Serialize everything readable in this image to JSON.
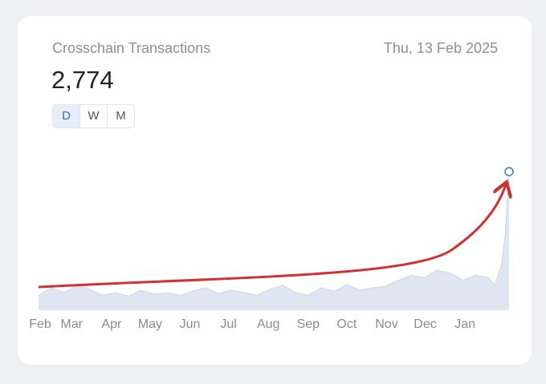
{
  "header": {
    "title": "Crosschain Transactions",
    "date": "Thu, 13 Feb 2025",
    "value": "2,774",
    "buttons": [
      "D",
      "W",
      "M"
    ]
  },
  "chart_data": {
    "type": "area",
    "color": "#dfe6f1",
    "x": [
      0,
      10,
      20,
      30,
      40,
      50,
      60,
      70,
      80,
      90,
      100,
      110,
      120,
      130,
      140,
      150,
      160,
      170,
      180,
      190,
      200,
      210,
      220,
      230,
      240,
      250,
      260,
      270,
      280,
      290,
      300,
      310,
      320,
      330,
      340,
      350,
      355,
      360,
      363,
      366
    ],
    "values": [
      300,
      450,
      350,
      500,
      420,
      300,
      350,
      280,
      400,
      320,
      350,
      300,
      380,
      450,
      330,
      400,
      350,
      300,
      420,
      500,
      350,
      300,
      450,
      380,
      520,
      400,
      450,
      480,
      600,
      700,
      650,
      800,
      750,
      600,
      700,
      650,
      500,
      900,
      1500,
      2774
    ],
    "xlim": [
      0,
      366
    ],
    "ylim": [
      0,
      3000
    ],
    "xticks": [
      {
        "value": 0,
        "label": "Feb"
      },
      {
        "value": 17,
        "label": "Mar"
      },
      {
        "value": 48,
        "label": "Apr"
      },
      {
        "value": 78,
        "label": "May"
      },
      {
        "value": 109,
        "label": "Jun"
      },
      {
        "value": 139,
        "label": "Jul"
      },
      {
        "value": 170,
        "label": "Aug"
      },
      {
        "value": 201,
        "label": "Sep"
      },
      {
        "value": 231,
        "label": "Oct"
      },
      {
        "value": 262,
        "label": "Nov"
      },
      {
        "value": 292,
        "label": "Dec"
      },
      {
        "value": 323,
        "label": "Jan"
      }
    ]
  }
}
